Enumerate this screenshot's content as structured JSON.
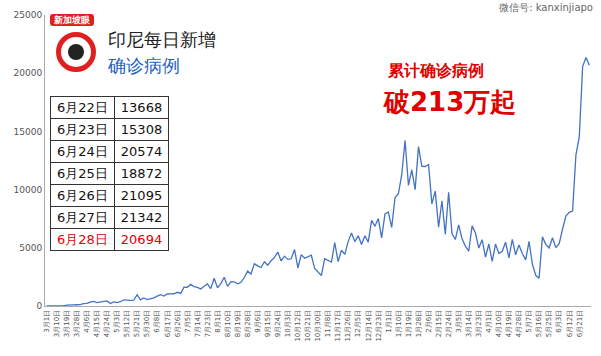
{
  "chart_data": {
    "type": "line",
    "title": "印尼每日新增",
    "subtitle": "确诊病例",
    "logo": "新加坡眼",
    "watermark": "微信号: kanxinjiapo",
    "annotations": [
      "累计确诊病例",
      "破213万起"
    ],
    "color": "#4472c4",
    "ylim": [
      0,
      25000
    ],
    "yticks": [
      0,
      5000,
      10000,
      15000,
      20000,
      25000
    ],
    "grid": false,
    "categories": [
      "3月1日",
      null,
      null,
      "3月10日",
      null,
      null,
      "3月19日",
      null,
      null,
      "3月28日",
      null,
      null,
      "4月6日",
      null,
      null,
      "4月15日",
      null,
      null,
      "4月24日",
      null,
      null,
      "5月3日",
      null,
      null,
      "5月12日",
      null,
      null,
      "5月21日",
      null,
      null,
      "5月30日",
      null,
      null,
      "6月8日",
      null,
      null,
      "6月17日",
      null,
      null,
      "6月26日",
      null,
      null,
      "7月5日",
      null,
      null,
      "7月14日",
      null,
      null,
      "7月23日",
      null,
      null,
      "8月1日",
      null,
      null,
      "8月10日",
      null,
      null,
      "8月19日",
      null,
      null,
      "8月28日",
      null,
      null,
      "9月6日",
      null,
      null,
      "9月15日",
      null,
      null,
      "9月24日",
      null,
      null,
      "10月3日",
      null,
      null,
      "10月12日",
      null,
      null,
      "10月21日",
      null,
      null,
      "10月30日",
      null,
      null,
      "11月8日",
      null,
      null,
      "11月17日",
      null,
      null,
      "11月26日",
      null,
      null,
      "12月5日",
      null,
      null,
      "12月14日",
      null,
      null,
      "12月23日",
      null,
      null,
      "1月1日",
      null,
      null,
      "1月10日",
      null,
      null,
      "1月19日",
      null,
      null,
      "1月28日",
      null,
      null,
      "2月6日",
      null,
      null,
      "2月15日",
      null,
      null,
      "2月24日",
      null,
      null,
      "3月5日",
      null,
      null,
      "3月14日",
      null,
      null,
      "3月23日",
      null,
      null,
      "4月1日",
      null,
      null,
      "4月10日",
      null,
      null,
      "4月19日",
      null,
      null,
      "4月28日",
      null,
      null,
      "5月7日",
      null,
      null,
      "5月16日",
      null,
      null,
      "5月25日",
      null,
      null,
      "6月3日",
      null,
      null,
      "6月12日",
      null,
      null,
      "6月21日",
      null,
      null,
      null
    ],
    "values": [
      0,
      0,
      2,
      8,
      35,
      17,
      82,
      64,
      104,
      109,
      114,
      196,
      218,
      337,
      399,
      297,
      325,
      375,
      436,
      214,
      347,
      292,
      367,
      533,
      484,
      490,
      496,
      973,
      526,
      686,
      557,
      609,
      703,
      847,
      979,
      857,
      1031,
      1041,
      1051,
      1178,
      1082,
      1624,
      1607,
      1853,
      1671,
      1591,
      1462,
      1693,
      1906,
      1492,
      2381,
      1560,
      1922,
      2473,
      1687,
      2098,
      2081,
      1902,
      2037,
      2447,
      3003,
      2743,
      3622,
      3444,
      3307,
      3806,
      3507,
      3891,
      4176,
      4634,
      3874,
      4284,
      4007,
      4056,
      4850,
      3267,
      4411,
      4105,
      4267,
      4369,
      3222,
      2897,
      2618,
      4065,
      3880,
      3770,
      5444,
      3807,
      4792,
      4442,
      5534,
      6267,
      5533,
      6027,
      5292,
      6033,
      5489,
      7354,
      6848,
      7514,
      5854,
      7903,
      8072,
      6753,
      9321,
      9640,
      11278,
      14224,
      10365,
      11703,
      9994,
      13695,
      12001,
      11984,
      12156,
      8776,
      9869,
      6765,
      9039,
      6156,
      9775,
      6208,
      5712,
      6971,
      5767,
      5144,
      4714,
      6885,
      6267,
      4981,
      5701,
      4192,
      5327,
      3823,
      5325,
      4514,
      4702,
      5476,
      4142,
      5720,
      4402,
      5241,
      4512,
      3963,
      5554,
      3609,
      2633,
      2385,
      5937,
      5296,
      4988,
      5862,
      5014,
      5353,
      6594,
      7725,
      8048,
      8161,
      12990,
      14536,
      20574,
      21342,
      20694
    ],
    "table": {
      "rows": [
        [
          "6月22日",
          13668
        ],
        [
          "6月23日",
          15308
        ],
        [
          "6月24日",
          20574
        ],
        [
          "6月25日",
          18872
        ],
        [
          "6月26日",
          21095
        ],
        [
          "6月27日",
          21342
        ],
        [
          "6月28日",
          20694
        ]
      ]
    }
  }
}
